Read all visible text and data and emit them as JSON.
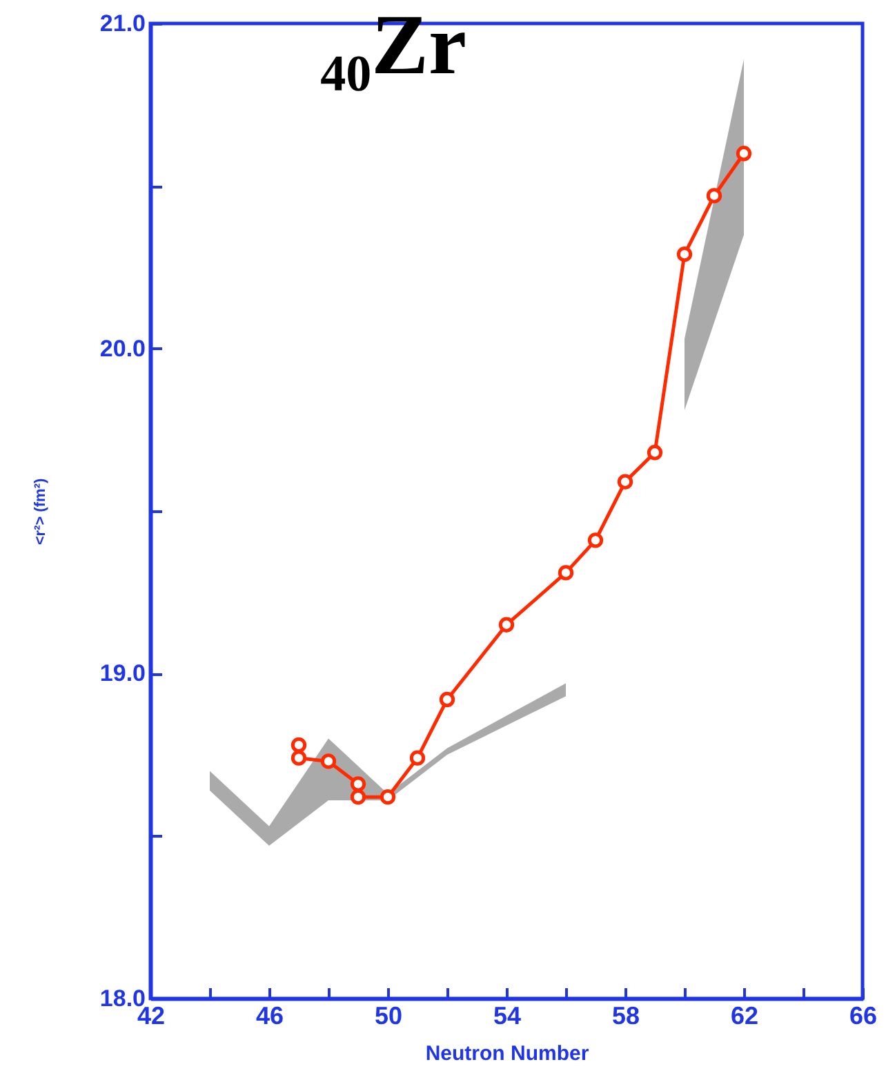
{
  "chart_data": {
    "type": "line",
    "title": "₄₀Zr",
    "xlabel": "Neutron Number",
    "ylabel": "<r²> (fm²)",
    "xlim": [
      42,
      66
    ],
    "xticks": [
      42,
      {
        "value": 44,
        "label": null
      },
      46,
      {
        "value": 48,
        "label": null
      },
      50,
      {
        "value": 52,
        "label": null
      },
      54,
      {
        "value": 56,
        "label": null
      },
      58,
      {
        "value": 60,
        "label": null
      },
      62,
      {
        "value": 64,
        "label": null
      },
      66
    ],
    "ylim": [
      18,
      21
    ],
    "yticks": [
      {
        "value": 18,
        "label": "18.0"
      },
      {
        "value": 18.5,
        "label": null
      },
      {
        "value": 19,
        "label": "19.0"
      },
      {
        "value": 19.5,
        "label": null
      },
      {
        "value": 20,
        "label": "20.0"
      },
      {
        "value": 20.5,
        "label": null
      },
      {
        "value": 21,
        "label": "21.0"
      }
    ],
    "grid": false,
    "line_style": "solid",
    "series": [
      {
        "type": "area",
        "color": "#aaaaaa",
        "x": [
          44,
          46,
          48,
          50,
          52,
          56
        ],
        "values": [
          null,
          null,
          null,
          null,
          null,
          null
        ],
        "lower": [
          18.64,
          18.47,
          18.61,
          18.61,
          18.75,
          18.93
        ],
        "upper": [
          18.7,
          18.53,
          18.8,
          18.63,
          18.77,
          18.97
        ]
      },
      {
        "type": "area",
        "color": "#aaaaaa",
        "x": [
          60,
          61,
          62
        ],
        "values": [
          null,
          null,
          null
        ],
        "lower": [
          19.81,
          20.08,
          20.35
        ],
        "upper": [
          20.03,
          20.46,
          20.89
        ]
      },
      {
        "color": "#ff2a00",
        "marker": "circle",
        "x": [
          47,
          47,
          48,
          49,
          49,
          50,
          51,
          52,
          54,
          56,
          57,
          58,
          59,
          60,
          61,
          62
        ],
        "values": [
          18.78,
          18.74,
          18.73,
          18.66,
          18.62,
          18.62,
          18.74,
          18.92,
          19.15,
          19.31,
          19.41,
          19.59,
          19.68,
          20.29,
          20.47,
          20.6
        ]
      }
    ]
  }
}
